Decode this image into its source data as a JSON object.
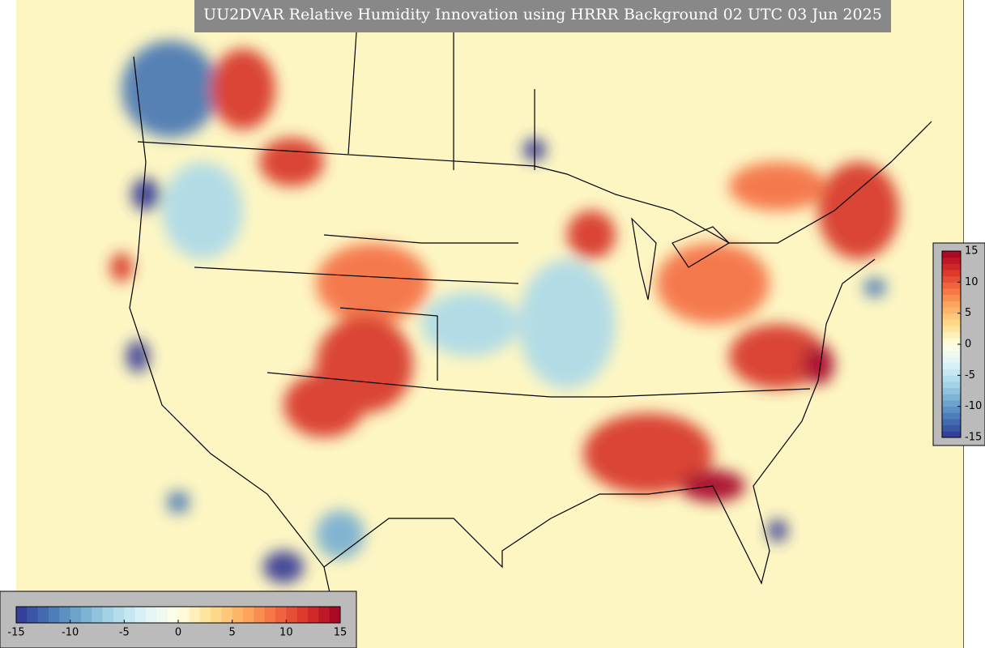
{
  "map": {
    "title": "UU2DVAR Relative Humidity Innovation using HRRR Background 02 UTC 03 Jun 2025",
    "colormap": [
      "#313695",
      "#4575b4",
      "#74add1",
      "#abd9e9",
      "#e0f3f8",
      "#ffffe5",
      "#fee090",
      "#fdae61",
      "#f46d43",
      "#d73027",
      "#a50026"
    ],
    "colorbar_horizontal": {
      "ticks": [
        -15,
        -10,
        -5,
        0,
        5,
        10,
        15
      ]
    },
    "colorbar_vertical": {
      "ticks": [
        -15,
        -10,
        -5,
        0,
        5,
        10,
        15
      ]
    }
  }
}
